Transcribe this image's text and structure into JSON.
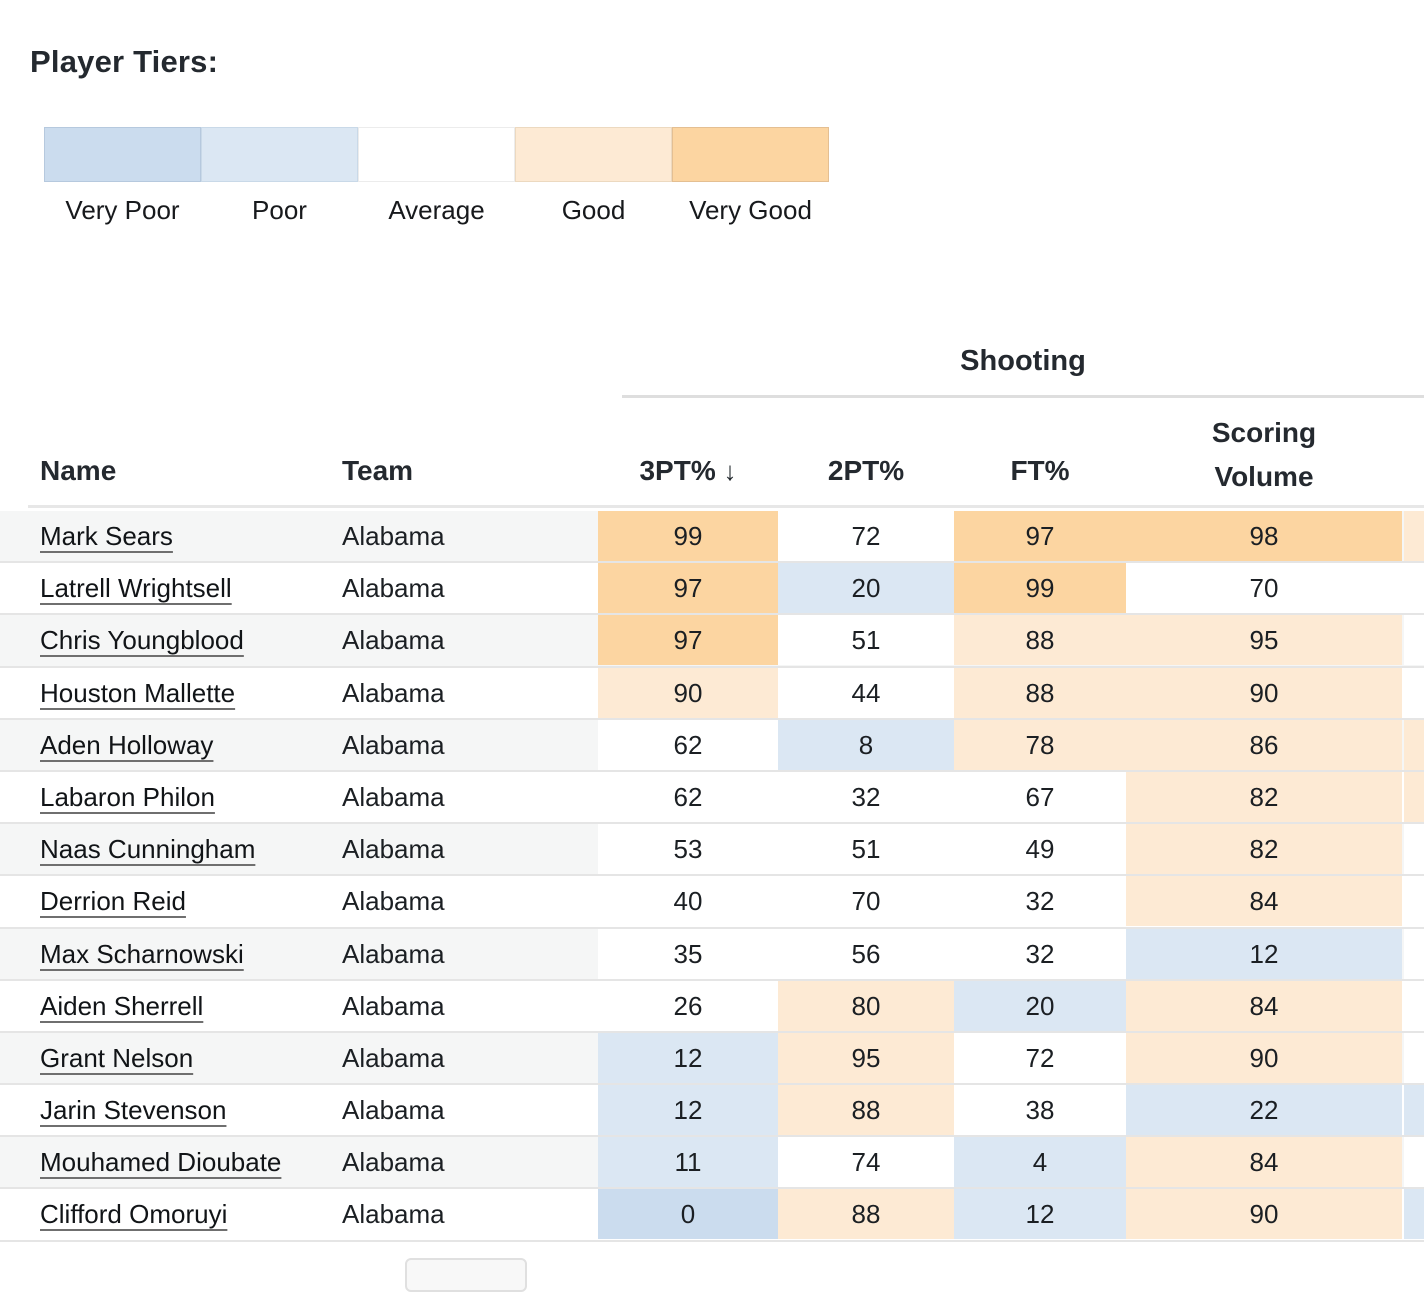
{
  "page": {
    "title": "Player Tiers:"
  },
  "legend": {
    "tiers": [
      {
        "id": "very_poor",
        "label": "Very Poor"
      },
      {
        "id": "poor",
        "label": "Poor"
      },
      {
        "id": "average",
        "label": "Average"
      },
      {
        "id": "good",
        "label": "Good"
      },
      {
        "id": "very_good",
        "label": "Very Good"
      }
    ]
  },
  "tier_colors": {
    "very_poor": "#cbdcee",
    "poor": "#dbe7f3",
    "average": "#ffffff",
    "good": "#fdead4",
    "very_good": "#fcd5a1"
  },
  "tier_border_colors": {
    "very_poor": "#b6c9de",
    "poor": "#c9d9e8",
    "average": "#ececec",
    "good": "#ecd9c0",
    "very_good": "#e4bf92"
  },
  "table": {
    "group_header": "Shooting",
    "columns": {
      "name": {
        "label": "Name"
      },
      "team": {
        "label": "Team"
      },
      "pt3": {
        "label": "3PT%",
        "sort_indicator": "↓"
      },
      "pt2": {
        "label": "2PT%"
      },
      "ft": {
        "label": "FT%"
      },
      "sv": {
        "label": "Scoring Volume",
        "line1": "Scoring",
        "line2": "Volume"
      }
    },
    "rows": [
      {
        "name": "Mark Sears",
        "team": "Alabama",
        "pt3": {
          "v": "99",
          "tier": "very_good"
        },
        "pt2": {
          "v": "72",
          "tier": "average"
        },
        "ft": {
          "v": "97",
          "tier": "very_good"
        },
        "sv": {
          "v": "98",
          "tier": "very_good"
        },
        "extra_tier": "good"
      },
      {
        "name": "Latrell Wrightsell",
        "team": "Alabama",
        "pt3": {
          "v": "97",
          "tier": "very_good"
        },
        "pt2": {
          "v": "20",
          "tier": "poor"
        },
        "ft": {
          "v": "99",
          "tier": "very_good"
        },
        "sv": {
          "v": "70",
          "tier": "average"
        },
        "extra_tier": "average"
      },
      {
        "name": "Chris Youngblood",
        "team": "Alabama",
        "pt3": {
          "v": "97",
          "tier": "very_good"
        },
        "pt2": {
          "v": "51",
          "tier": "average"
        },
        "ft": {
          "v": "88",
          "tier": "good"
        },
        "sv": {
          "v": "95",
          "tier": "good"
        },
        "extra_tier": "average"
      },
      {
        "name": "Houston Mallette",
        "team": "Alabama",
        "pt3": {
          "v": "90",
          "tier": "good"
        },
        "pt2": {
          "v": "44",
          "tier": "average"
        },
        "ft": {
          "v": "88",
          "tier": "good"
        },
        "sv": {
          "v": "90",
          "tier": "good"
        },
        "extra_tier": "average"
      },
      {
        "name": "Aden Holloway",
        "team": "Alabama",
        "pt3": {
          "v": "62",
          "tier": "average"
        },
        "pt2": {
          "v": "8",
          "tier": "poor"
        },
        "ft": {
          "v": "78",
          "tier": "good"
        },
        "sv": {
          "v": "86",
          "tier": "good"
        },
        "extra_tier": "good"
      },
      {
        "name": "Labaron Philon",
        "team": "Alabama",
        "pt3": {
          "v": "62",
          "tier": "average"
        },
        "pt2": {
          "v": "32",
          "tier": "average"
        },
        "ft": {
          "v": "67",
          "tier": "average"
        },
        "sv": {
          "v": "82",
          "tier": "good"
        },
        "extra_tier": "good"
      },
      {
        "name": "Naas Cunningham",
        "team": "Alabama",
        "pt3": {
          "v": "53",
          "tier": "average"
        },
        "pt2": {
          "v": "51",
          "tier": "average"
        },
        "ft": {
          "v": "49",
          "tier": "average"
        },
        "sv": {
          "v": "82",
          "tier": "good"
        },
        "extra_tier": "average"
      },
      {
        "name": "Derrion Reid",
        "team": "Alabama",
        "pt3": {
          "v": "40",
          "tier": "average"
        },
        "pt2": {
          "v": "70",
          "tier": "average"
        },
        "ft": {
          "v": "32",
          "tier": "average"
        },
        "sv": {
          "v": "84",
          "tier": "good"
        },
        "extra_tier": "average"
      },
      {
        "name": "Max Scharnowski",
        "team": "Alabama",
        "pt3": {
          "v": "35",
          "tier": "average"
        },
        "pt2": {
          "v": "56",
          "tier": "average"
        },
        "ft": {
          "v": "32",
          "tier": "average"
        },
        "sv": {
          "v": "12",
          "tier": "poor"
        },
        "extra_tier": "average"
      },
      {
        "name": "Aiden Sherrell",
        "team": "Alabama",
        "pt3": {
          "v": "26",
          "tier": "average"
        },
        "pt2": {
          "v": "80",
          "tier": "good"
        },
        "ft": {
          "v": "20",
          "tier": "poor"
        },
        "sv": {
          "v": "84",
          "tier": "good"
        },
        "extra_tier": "average"
      },
      {
        "name": "Grant Nelson",
        "team": "Alabama",
        "pt3": {
          "v": "12",
          "tier": "poor"
        },
        "pt2": {
          "v": "95",
          "tier": "good"
        },
        "ft": {
          "v": "72",
          "tier": "average"
        },
        "sv": {
          "v": "90",
          "tier": "good"
        },
        "extra_tier": "average"
      },
      {
        "name": "Jarin Stevenson",
        "team": "Alabama",
        "pt3": {
          "v": "12",
          "tier": "poor"
        },
        "pt2": {
          "v": "88",
          "tier": "good"
        },
        "ft": {
          "v": "38",
          "tier": "average"
        },
        "sv": {
          "v": "22",
          "tier": "poor"
        },
        "extra_tier": "poor"
      },
      {
        "name": "Mouhamed Dioubate",
        "team": "Alabama",
        "pt3": {
          "v": "11",
          "tier": "poor"
        },
        "pt2": {
          "v": "74",
          "tier": "average"
        },
        "ft": {
          "v": "4",
          "tier": "poor"
        },
        "sv": {
          "v": "84",
          "tier": "good"
        },
        "extra_tier": "average"
      },
      {
        "name": "Clifford Omoruyi",
        "team": "Alabama",
        "pt3": {
          "v": "0",
          "tier": "very_poor"
        },
        "pt2": {
          "v": "88",
          "tier": "good"
        },
        "ft": {
          "v": "12",
          "tier": "poor"
        },
        "sv": {
          "v": "90",
          "tier": "good"
        },
        "extra_tier": "poor"
      }
    ]
  }
}
